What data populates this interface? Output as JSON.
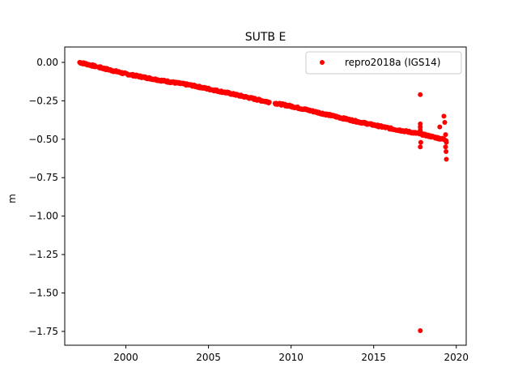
{
  "chart_data": {
    "type": "scatter",
    "title": "SUTB E",
    "xlabel": "",
    "ylabel": "m",
    "xlim": [
      1996.3,
      2020.6
    ],
    "ylim": [
      -1.84,
      0.1
    ],
    "x_ticks": [
      2000,
      2005,
      2010,
      2015,
      2020
    ],
    "y_ticks": [
      0.0,
      -0.25,
      -0.5,
      -0.75,
      -1.0,
      -1.25,
      -1.5,
      -1.75
    ],
    "x_tick_labels": [
      "2000",
      "2005",
      "2010",
      "2015",
      "2020"
    ],
    "y_tick_labels": [
      "0.00",
      "−0.25",
      "−0.50",
      "−0.75",
      "−1.00",
      "−1.25",
      "−1.50",
      "−1.75"
    ],
    "grid": false,
    "legend_position": "top-right",
    "series": [
      {
        "name": "repro2018a (IGS14)",
        "color": "#ff0000",
        "marker": "circle",
        "trend": {
          "x": [
            1997.2,
            1998.5,
            2000.0,
            2002.0,
            2004.0,
            2006.0,
            2008.5,
            2009.0,
            2010.0,
            2012.0,
            2014.0,
            2016.0,
            2017.8,
            2019.4
          ],
          "y": [
            0.0,
            -0.035,
            -0.075,
            -0.115,
            -0.15,
            -0.195,
            -0.255,
            -0.265,
            -0.285,
            -0.335,
            -0.385,
            -0.43,
            -0.465,
            -0.505
          ]
        },
        "gaps": [
          [
            1998.2,
            1998.3
          ],
          [
            2008.7,
            2009.0
          ]
        ],
        "outliers": {
          "x": [
            2017.82,
            2017.82,
            2017.82,
            2017.82,
            2017.82,
            2017.85,
            2017.82,
            2019.0,
            2019.25,
            2019.3,
            2019.35,
            2019.35,
            2019.38,
            2019.4,
            2019.4
          ],
          "y": [
            -0.21,
            -0.4,
            -0.42,
            -0.44,
            -0.55,
            -0.52,
            -1.745,
            -0.42,
            -0.35,
            -0.39,
            -0.47,
            -0.55,
            -0.58,
            -0.63,
            -0.52
          ]
        }
      }
    ]
  }
}
